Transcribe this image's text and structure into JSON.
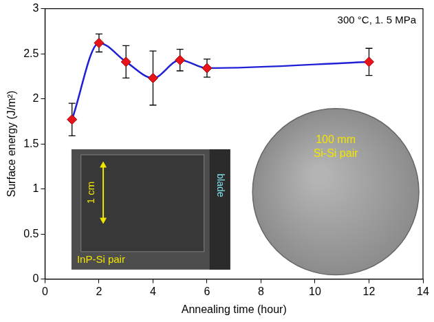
{
  "chart_data": {
    "type": "scatter",
    "x_label": "Annealing time (hour)",
    "y_label": "Surface energy (J/m²)",
    "annotations": [
      "300 °C, 1. 5 MPa"
    ],
    "x": [
      1,
      2,
      3,
      4,
      5,
      6,
      12
    ],
    "series": [
      {
        "type": "line",
        "color": "#1f1fd6",
        "line_style": "smooth",
        "marker": "none",
        "values": [
          1.77,
          2.62,
          2.41,
          2.23,
          2.43,
          2.34,
          2.41
        ]
      },
      {
        "type": "scatter",
        "color": "#e8141b",
        "marker": "diamond",
        "values": [
          1.77,
          2.62,
          2.41,
          2.23,
          2.43,
          2.34,
          2.41
        ],
        "errors": [
          0.18,
          0.1,
          0.18,
          0.3,
          0.12,
          0.1,
          0.15
        ]
      }
    ],
    "xlim": [
      0,
      14
    ],
    "xticks": [
      0,
      2,
      4,
      6,
      8,
      10,
      12,
      14
    ],
    "ylim": [
      0,
      3
    ],
    "yticks": [
      0,
      0.5,
      1,
      1.5,
      2,
      2.5,
      3
    ],
    "grid": false,
    "insets": [
      {
        "caption": "InP-Si pair",
        "scale_label": "1 cm",
        "side_label": "blade"
      },
      {
        "caption_lines": [
          "100 mm",
          "Si-Si pair"
        ]
      }
    ]
  }
}
